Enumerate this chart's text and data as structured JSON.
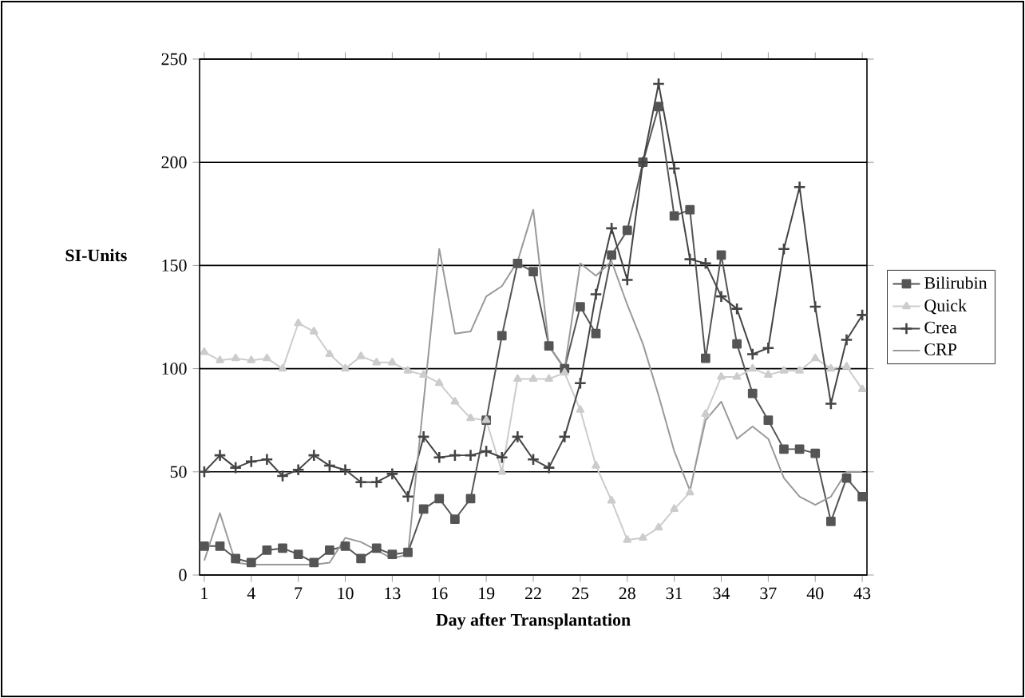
{
  "chart_data": {
    "type": "line",
    "xlabel": "Day after Transplantation",
    "ylabel": "SI-Units",
    "categories": [
      "1",
      null,
      null,
      "4",
      null,
      null,
      "7",
      null,
      null,
      "10",
      null,
      null,
      "13",
      null,
      null,
      "16",
      null,
      null,
      "19",
      null,
      null,
      "22",
      null,
      null,
      "25",
      null,
      null,
      "28",
      null,
      null,
      "31",
      null,
      null,
      "34",
      null,
      null,
      "37",
      null,
      null,
      "40",
      null,
      null,
      "43"
    ],
    "series": [
      {
        "name": "Bilirubin",
        "color": "#555555",
        "marker": "square",
        "values": [
          14,
          14,
          8,
          6,
          12,
          13,
          10,
          6,
          12,
          14,
          8,
          13,
          10,
          11,
          32,
          37,
          27,
          37,
          75,
          116,
          151,
          147,
          111,
          100,
          130,
          117,
          155,
          167,
          200,
          227,
          174,
          177,
          105,
          155,
          112,
          88,
          75,
          61,
          61,
          59,
          26,
          47,
          38
        ]
      },
      {
        "name": "Quick",
        "color": "#cccccc",
        "marker": "triangle",
        "values": [
          108,
          104,
          105,
          104,
          105,
          100,
          122,
          118,
          107,
          100,
          106,
          103,
          103,
          99,
          97,
          93,
          84,
          76,
          75,
          50,
          95,
          95,
          95,
          98,
          80,
          53,
          36,
          17,
          18,
          23,
          32,
          40,
          78,
          96,
          96,
          100,
          97,
          99,
          99,
          105,
          100,
          101,
          90
        ]
      },
      {
        "name": "Crea",
        "color": "#444444",
        "marker": "cross",
        "values": [
          50,
          58,
          52,
          55,
          56,
          48,
          51,
          58,
          53,
          51,
          45,
          45,
          49,
          38,
          67,
          57,
          58,
          58,
          60,
          57,
          67,
          56,
          52,
          67,
          93,
          136,
          168,
          143,
          200,
          238,
          197,
          153,
          151,
          135,
          129,
          107,
          110,
          158,
          188,
          130,
          83,
          114,
          126
        ]
      },
      {
        "name": "CRP",
        "color": "#999999",
        "marker": "none",
        "values": [
          7,
          30,
          6,
          5,
          5,
          5,
          5,
          5,
          6,
          18,
          16,
          12,
          8,
          10,
          84,
          158,
          117,
          118,
          135,
          140,
          152,
          177,
          111,
          100,
          151,
          145,
          152,
          131,
          112,
          87,
          60,
          41,
          75,
          84,
          66,
          72,
          66,
          47,
          38,
          34,
          38,
          50,
          50
        ]
      }
    ],
    "ylim": [
      0,
      250
    ],
    "yticks": [
      0,
      50,
      100,
      150,
      200,
      250
    ],
    "grid": "y",
    "legend": "right",
    "line_style": "solid"
  }
}
